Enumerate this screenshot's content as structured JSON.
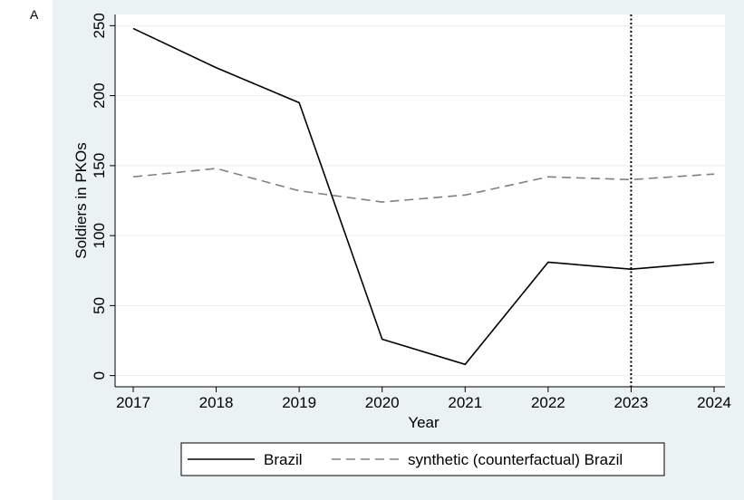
{
  "panel_label": "A",
  "chart_data": {
    "type": "line",
    "title": "",
    "xlabel": "Year",
    "ylabel": "Soldiers in PKOs",
    "x": [
      2017,
      2018,
      2019,
      2020,
      2021,
      2022,
      2023,
      2024
    ],
    "x_tick_labels": [
      "2017",
      "2018",
      "2019",
      "2020",
      "2021",
      "2022",
      "2023",
      "2024"
    ],
    "y_ticks": [
      0,
      50,
      100,
      150,
      200,
      250
    ],
    "y_tick_labels": [
      "0",
      "50",
      "100",
      "150",
      "200",
      "250"
    ],
    "xlim": [
      2017,
      2024
    ],
    "ylim": [
      -8,
      258
    ],
    "grid": true,
    "legend_position": "bottom",
    "vertical_line": {
      "x": 2023,
      "style": "dotted"
    },
    "series": [
      {
        "name": "Brazil",
        "style": "solid",
        "color": "#000000",
        "values": [
          248,
          220,
          195,
          26,
          8,
          81,
          76,
          81
        ]
      },
      {
        "name": "synthetic (counterfactual) Brazil",
        "style": "dashed",
        "color": "#808080",
        "values": [
          142,
          148,
          132,
          124,
          129,
          142,
          140,
          144
        ]
      }
    ],
    "colors": {
      "outer_background": "#eaf2f3",
      "plot_background": "#ffffff",
      "grid": "#e6eef0"
    }
  }
}
